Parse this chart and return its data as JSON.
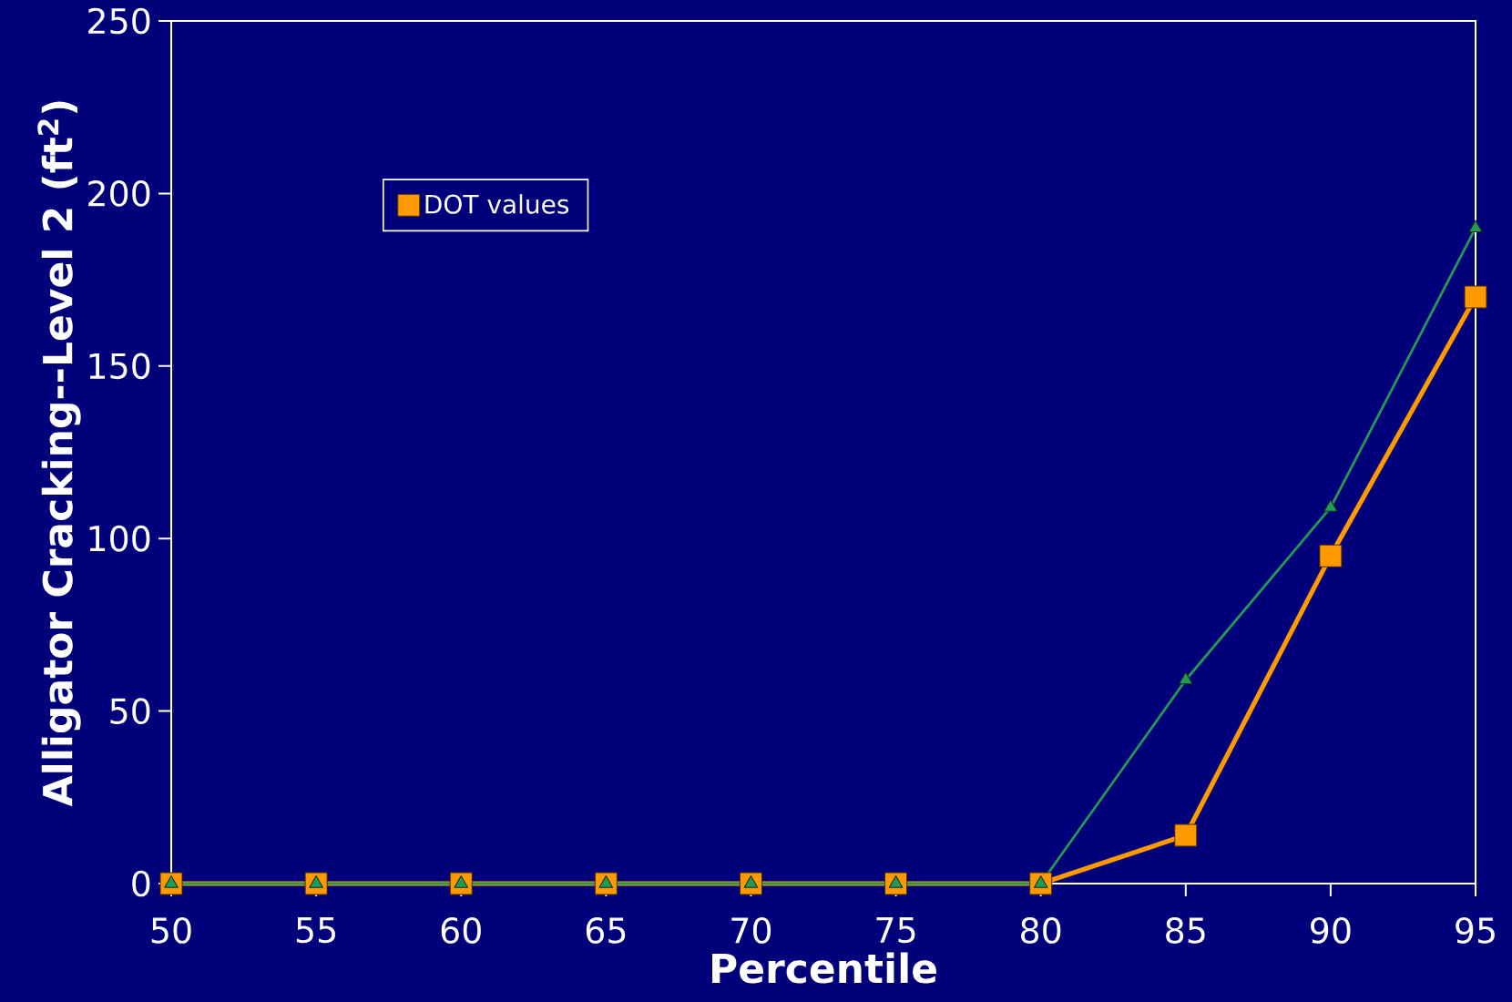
{
  "chart_data": {
    "type": "line",
    "xlabel": "Percentile",
    "ylabel": "Alligator Cracking--Level 2 (ft$^{2}$)",
    "x": [
      50,
      55,
      60,
      65,
      70,
      75,
      80,
      85,
      90,
      95
    ],
    "series": [
      {
        "name": "DOT values",
        "color": "#ff9900",
        "marker": "square",
        "values": [
          0,
          0,
          0,
          0,
          0,
          0,
          0,
          14,
          95,
          170
        ]
      },
      {
        "color": "#229955",
        "marker": "triangle",
        "values": [
          0,
          0,
          0,
          0,
          0,
          0,
          0,
          59,
          109,
          190
        ]
      }
    ],
    "xlim": [
      50,
      95
    ],
    "xticks": [
      50,
      55,
      60,
      65,
      70,
      75,
      80,
      85,
      90,
      95
    ],
    "ylim": [
      0,
      250
    ],
    "yticks": [
      0,
      50,
      100,
      150,
      200,
      250
    ],
    "legend": "top left"
  }
}
